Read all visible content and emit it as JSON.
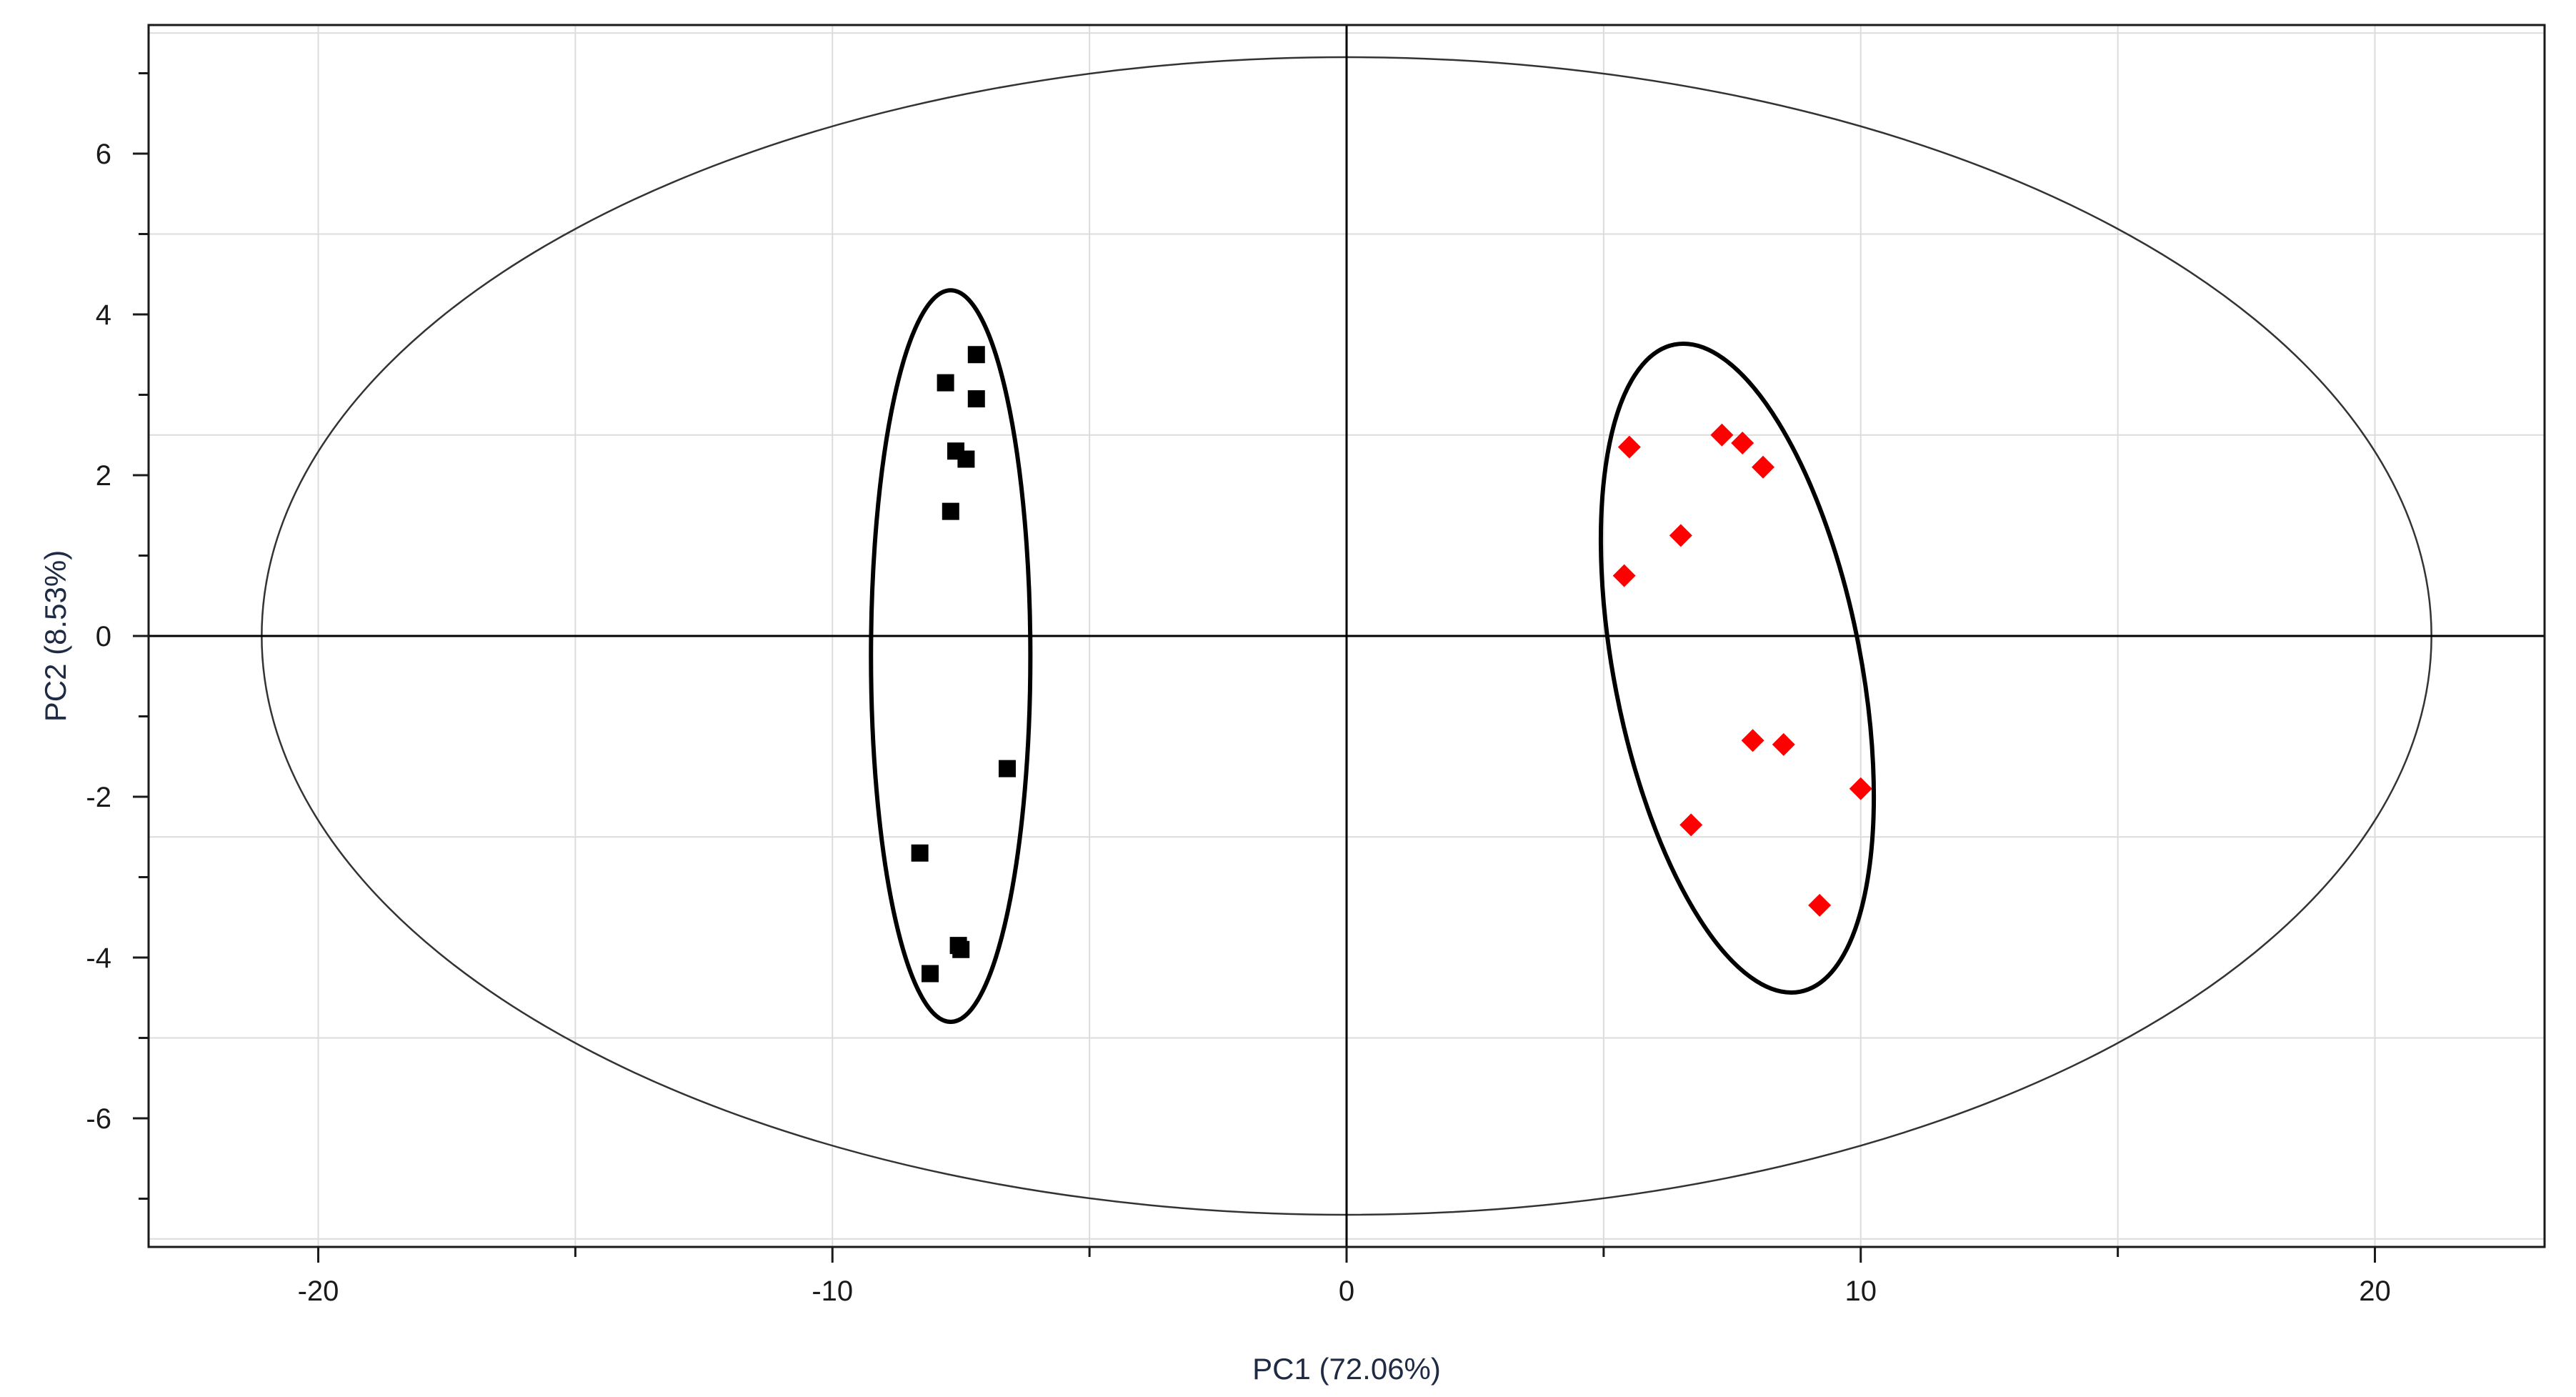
{
  "chart_data": {
    "type": "scatter",
    "xlabel": "PC1 (72.06%)",
    "ylabel": "PC2 (8.53%)",
    "xlim": [
      -23.3,
      23.3
    ],
    "ylim": [
      -7.6,
      7.6
    ],
    "x_ticks": [
      -20,
      -10,
      0,
      10,
      20
    ],
    "y_ticks": [
      -6,
      -4,
      -2,
      0,
      2,
      4,
      6
    ],
    "grid": true,
    "x_gridlines": [
      -20,
      -15,
      -10,
      -5,
      0,
      5,
      10,
      15,
      20
    ],
    "y_gridlines": [
      -7.5,
      -5,
      -2.5,
      2.5,
      5,
      7.5
    ],
    "series": [
      {
        "marker": "square",
        "color": "#000000",
        "points": [
          {
            "x": -7.2,
            "y": 3.5
          },
          {
            "x": -7.8,
            "y": 3.15
          },
          {
            "x": -7.2,
            "y": 2.95
          },
          {
            "x": -7.6,
            "y": 2.3
          },
          {
            "x": -7.4,
            "y": 2.2
          },
          {
            "x": -7.7,
            "y": 1.55
          },
          {
            "x": -6.6,
            "y": -1.65
          },
          {
            "x": -8.3,
            "y": -2.7
          },
          {
            "x": -7.55,
            "y": -3.85
          },
          {
            "x": -7.5,
            "y": -3.9
          },
          {
            "x": -8.1,
            "y": -4.2
          }
        ],
        "ellipse": {
          "center": [
            -7.7,
            -0.25
          ],
          "semi_axes": [
            1.55,
            4.55
          ],
          "rotation_deg": 0
        }
      },
      {
        "marker": "diamond",
        "color": "#ff0000",
        "points": [
          {
            "x": 5.5,
            "y": 2.35
          },
          {
            "x": 7.3,
            "y": 2.5
          },
          {
            "x": 7.7,
            "y": 2.4
          },
          {
            "x": 8.1,
            "y": 2.1
          },
          {
            "x": 6.5,
            "y": 1.25
          },
          {
            "x": 5.4,
            "y": 0.75
          },
          {
            "x": 7.9,
            "y": -1.3
          },
          {
            "x": 8.5,
            "y": -1.35
          },
          {
            "x": 10.0,
            "y": -1.9
          },
          {
            "x": 6.7,
            "y": -2.35
          },
          {
            "x": 9.2,
            "y": -3.35
          }
        ],
        "ellipse": {
          "center": [
            7.6,
            -0.4
          ],
          "semi_axes": [
            2.4,
            4.1
          ],
          "rotation_deg": -11
        }
      }
    ],
    "confidence_ellipse": {
      "center": [
        0,
        0
      ],
      "semi_axes": [
        21.1,
        7.2
      ]
    },
    "origin_lines": true
  }
}
